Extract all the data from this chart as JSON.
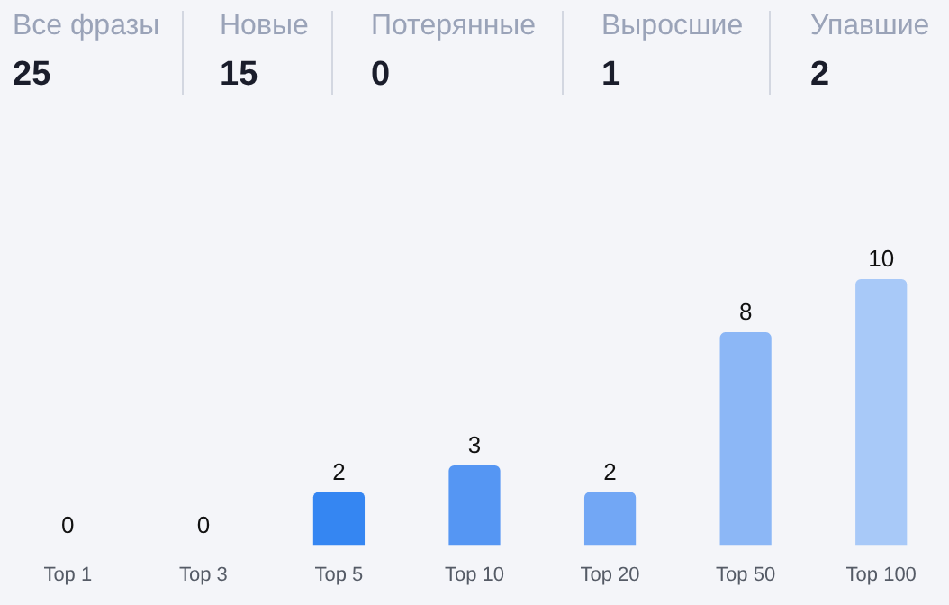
{
  "chart_data": [
    {
      "type": "other",
      "categories": [
        "Все фразы",
        "Новые",
        "Потерянные",
        "Выросшие",
        "Упавшие"
      ],
      "values": [
        25,
        15,
        0,
        1,
        2
      ],
      "data_labels": true
    },
    {
      "type": "bar",
      "categories": [
        "Top 1",
        "Top 3",
        "Top 5",
        "Top 10",
        "Top 20",
        "Top 50",
        "Top 100"
      ],
      "values": [
        0,
        0,
        2,
        3,
        2,
        8,
        10
      ],
      "colors": [
        "#3586f2",
        "#3586f2",
        "#3586f2",
        "#5596f3",
        "#72a7f5",
        "#8cb7f6",
        "#a8c9f8"
      ],
      "ylim": [
        0,
        10
      ],
      "data_labels": true,
      "grid": false,
      "legend": false
    }
  ]
}
